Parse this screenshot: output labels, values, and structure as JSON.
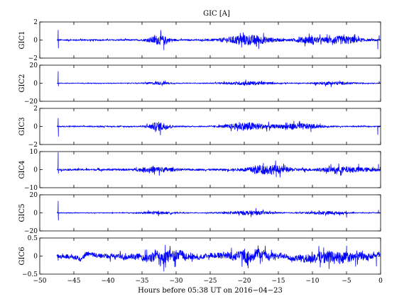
{
  "chart_data": {
    "type": "line",
    "title": "GIC [A]",
    "xlabel": "Hours before  05:38 UT on 2016−04−23",
    "xlim": [
      -50,
      0
    ],
    "xticks": [
      -50,
      -45,
      -40,
      -35,
      -30,
      -25,
      -20,
      -15,
      -10,
      -5,
      0
    ],
    "xtick_labels": [
      "−50",
      "−45",
      "−40",
      "−35",
      "−30",
      "−25",
      "−20",
      "−15",
      "−10",
      "−5",
      "0"
    ],
    "line_color": "#0000ff",
    "data_start_hours": -47.5,
    "data_end_hours": 0,
    "panels": [
      {
        "ylabel": "GIC1",
        "ylim": [
          -2,
          2
        ],
        "yticks": [
          -2,
          0,
          2
        ],
        "ytick_labels": [
          "−2",
          "0",
          "2"
        ],
        "spikes": [
          {
            "x": -47.3,
            "y": 1.1
          },
          {
            "x": -47.25,
            "y": -0.9
          },
          {
            "x": -31.8,
            "y": -1.1
          },
          {
            "x": -18.2,
            "y": -0.7
          },
          {
            "x": -5.4,
            "y": 0.6
          },
          {
            "x": -0.4,
            "y": -1.0
          },
          {
            "x": -0.2,
            "y": 0.5
          }
        ],
        "activity": [
          {
            "center": -32.5,
            "width": 1.5,
            "amp": 0.45
          },
          {
            "center": -19.5,
            "width": 3.5,
            "amp": 0.5
          },
          {
            "center": -5.5,
            "width": 2.5,
            "amp": 0.4
          },
          {
            "center": -10.5,
            "width": 2.0,
            "amp": 0.3
          }
        ],
        "baseline_amp": 0.08
      },
      {
        "ylabel": "GIC2",
        "ylim": [
          -20,
          20
        ],
        "yticks": [
          -20,
          0,
          20
        ],
        "ytick_labels": [
          "−20",
          "0",
          "20"
        ],
        "spikes": [
          {
            "x": -47.3,
            "y": 13
          },
          {
            "x": -47.25,
            "y": -3
          },
          {
            "x": -0.2,
            "y": 2
          }
        ],
        "activity": [
          {
            "center": -19.5,
            "width": 3.5,
            "amp": 1.8
          },
          {
            "center": -32.5,
            "width": 2.0,
            "amp": 1.2
          },
          {
            "center": -7.0,
            "width": 3.0,
            "amp": 1.5
          }
        ],
        "baseline_amp": 0.4
      },
      {
        "ylabel": "GIC3",
        "ylim": [
          -2,
          2
        ],
        "yticks": [
          -2,
          0,
          2
        ],
        "ytick_labels": [
          "−2",
          "0",
          "2"
        ],
        "spikes": [
          {
            "x": -47.3,
            "y": 0.9
          },
          {
            "x": -47.25,
            "y": -1.1
          },
          {
            "x": -33.0,
            "y": -0.6
          },
          {
            "x": -10.2,
            "y": -0.6
          },
          {
            "x": -0.4,
            "y": -0.9
          }
        ],
        "activity": [
          {
            "center": -32.5,
            "width": 1.5,
            "amp": 0.45
          },
          {
            "center": -19.5,
            "width": 3.0,
            "amp": 0.4
          },
          {
            "center": -12.0,
            "width": 3.0,
            "amp": 0.3
          }
        ],
        "baseline_amp": 0.06
      },
      {
        "ylabel": "GIC4",
        "ylim": [
          -10,
          10
        ],
        "yticks": [
          -10,
          0,
          10
        ],
        "ytick_labels": [
          "−10",
          "0",
          "10"
        ],
        "spikes": [
          {
            "x": -47.3,
            "y": 9.5
          },
          {
            "x": -47.25,
            "y": -2.0
          },
          {
            "x": -15.3,
            "y": -4.0
          },
          {
            "x": -0.3,
            "y": 3.0
          }
        ],
        "activity": [
          {
            "center": -16.5,
            "width": 3.0,
            "amp": 2.2
          },
          {
            "center": -33.0,
            "width": 2.5,
            "amp": 1.2
          },
          {
            "center": -5.0,
            "width": 4.0,
            "amp": 1.2
          }
        ],
        "baseline_amp": 0.5
      },
      {
        "ylabel": "GIC5",
        "ylim": [
          -20,
          20
        ],
        "yticks": [
          -20,
          0,
          20
        ],
        "ytick_labels": [
          "−20",
          "0",
          "20"
        ],
        "spikes": [
          {
            "x": -47.3,
            "y": 13
          },
          {
            "x": -47.25,
            "y": -8
          },
          {
            "x": -18.3,
            "y": 5
          },
          {
            "x": -5.0,
            "y": -5
          },
          {
            "x": -0.3,
            "y": 3
          }
        ],
        "activity": [
          {
            "center": -19.5,
            "width": 3.5,
            "amp": 2.0
          },
          {
            "center": -33.0,
            "width": 2.5,
            "amp": 1.2
          },
          {
            "center": -8.0,
            "width": 3.0,
            "amp": 1.5
          }
        ],
        "baseline_amp": 0.4
      },
      {
        "ylabel": "GIC6",
        "ylim": [
          -0.5,
          0.5
        ],
        "yticks": [
          -0.5,
          0,
          0.5
        ],
        "ytick_labels": [
          "−0.5",
          "0",
          "0.5"
        ],
        "spikes": [
          {
            "x": -47.3,
            "y": -0.12
          },
          {
            "x": -31.8,
            "y": -0.42
          },
          {
            "x": -30.2,
            "y": -0.3
          },
          {
            "x": -5.0,
            "y": 0.28
          },
          {
            "x": -0.6,
            "y": -0.28
          }
        ],
        "activity": [
          {
            "center": -31.5,
            "width": 3.5,
            "amp": 0.12
          },
          {
            "center": -19.5,
            "width": 4.5,
            "amp": 0.12
          },
          {
            "center": -7.0,
            "width": 5.0,
            "amp": 0.14
          },
          {
            "center": -40.0,
            "width": 10.0,
            "amp": 0.04
          }
        ],
        "baseline_amp": 0.025,
        "wander": 0.04
      }
    ]
  }
}
